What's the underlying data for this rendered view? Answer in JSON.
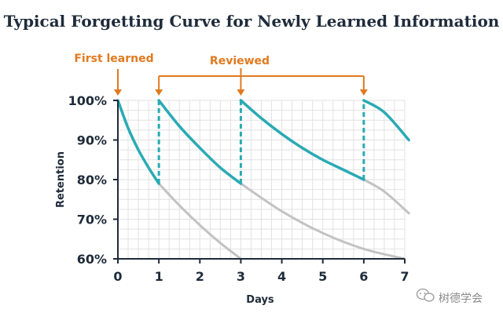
{
  "chart_data": {
    "type": "line",
    "title": "Typical Forgetting Curve for Newly Learned Information",
    "xlabel": "Days",
    "ylabel": "Retention",
    "xlim": [
      0,
      7
    ],
    "ylim": [
      60,
      100
    ],
    "xticks": [
      "0",
      "1",
      "2",
      "3",
      "4",
      "5",
      "6",
      "7"
    ],
    "yticks": [
      "60%",
      "70%",
      "80%",
      "90%",
      "100%"
    ],
    "grid": true,
    "review_days": [
      1,
      3,
      6
    ],
    "colors": {
      "review_curve": "#2aaab4",
      "decay_curve": "#c2c2c2",
      "annotation": "#e07a1f",
      "axis": "#1f2b3a",
      "grid": "#e2e2e2"
    },
    "series": [
      {
        "role": "retained",
        "x": [
          0,
          0.25,
          0.5,
          0.75,
          1,
          1,
          1.5,
          2,
          2.5,
          3,
          3,
          3.5,
          4,
          4.5,
          5,
          5.5,
          6,
          6,
          6.5,
          7.1
        ],
        "y": [
          100,
          93,
          87.5,
          83,
          79,
          100,
          93.5,
          88,
          83,
          79,
          100,
          95.5,
          91.5,
          88,
          85,
          82.5,
          80,
          100,
          97,
          90
        ]
      },
      {
        "role": "decay",
        "x": [
          1,
          1.5,
          2,
          2.5,
          3
        ],
        "y": [
          79,
          73.5,
          68.5,
          64,
          60
        ]
      },
      {
        "role": "decay",
        "x": [
          3,
          4,
          5,
          6,
          7
        ],
        "y": [
          79,
          72,
          66.5,
          62.5,
          60
        ]
      },
      {
        "role": "decay",
        "x": [
          6,
          6.5,
          7.1
        ],
        "y": [
          80,
          77,
          71.5
        ]
      }
    ],
    "annotations": {
      "first_learned": {
        "label": "First learned",
        "x": 0
      },
      "reviewed": {
        "label": "Reviewed",
        "x": [
          1,
          3,
          6
        ]
      }
    }
  },
  "watermark": {
    "text": "树德学会",
    "icon": "wechat-icon"
  }
}
